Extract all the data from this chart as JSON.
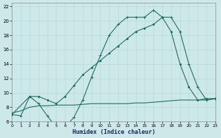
{
  "xlabel": "Humidex (Indice chaleur)",
  "xlim": [
    0,
    23
  ],
  "ylim": [
    6,
    22.5
  ],
  "yticks": [
    6,
    8,
    10,
    12,
    14,
    16,
    18,
    20,
    22
  ],
  "xticks": [
    0,
    1,
    2,
    3,
    4,
    5,
    6,
    7,
    8,
    9,
    10,
    11,
    12,
    13,
    14,
    15,
    16,
    17,
    18,
    19,
    20,
    21,
    22,
    23
  ],
  "bg_color": "#cce8e8",
  "grid_color": "#b8d8d8",
  "line_color": "#1a6e60",
  "line1_x": [
    0,
    1,
    2,
    3,
    4,
    5,
    6,
    7,
    8,
    9,
    10,
    11,
    12,
    13,
    14,
    15,
    16,
    17,
    18,
    19,
    20,
    21,
    22,
    23
  ],
  "line1_y": [
    7.0,
    6.8,
    9.5,
    8.5,
    6.8,
    5.2,
    5.2,
    6.6,
    9.0,
    12.2,
    15.2,
    18.0,
    19.5,
    20.5,
    20.5,
    20.5,
    21.5,
    20.5,
    20.5,
    18.5,
    14.0,
    10.8,
    9.0,
    9.2
  ],
  "line2_x": [
    0,
    2,
    3,
    4,
    5,
    6,
    7,
    8,
    9,
    10,
    11,
    12,
    13,
    14,
    15,
    16,
    17,
    18,
    19,
    20,
    21,
    22,
    23
  ],
  "line2_y": [
    7.0,
    9.5,
    9.5,
    9.0,
    8.5,
    9.5,
    11.0,
    12.5,
    13.5,
    14.5,
    15.5,
    16.5,
    17.5,
    18.5,
    19.0,
    19.5,
    20.5,
    18.5,
    14.0,
    10.8,
    9.0,
    9.2,
    9.2
  ],
  "line3_x": [
    0,
    1,
    2,
    3,
    4,
    5,
    6,
    7,
    8,
    9,
    10,
    11,
    12,
    13,
    14,
    15,
    16,
    17,
    18,
    19,
    20,
    21,
    22,
    23
  ],
  "line3_y": [
    7.2,
    7.5,
    8.0,
    8.2,
    8.2,
    8.3,
    8.3,
    8.3,
    8.4,
    8.5,
    8.5,
    8.5,
    8.5,
    8.5,
    8.6,
    8.6,
    8.7,
    8.8,
    8.9,
    9.0,
    9.0,
    9.0,
    9.0,
    9.2
  ]
}
